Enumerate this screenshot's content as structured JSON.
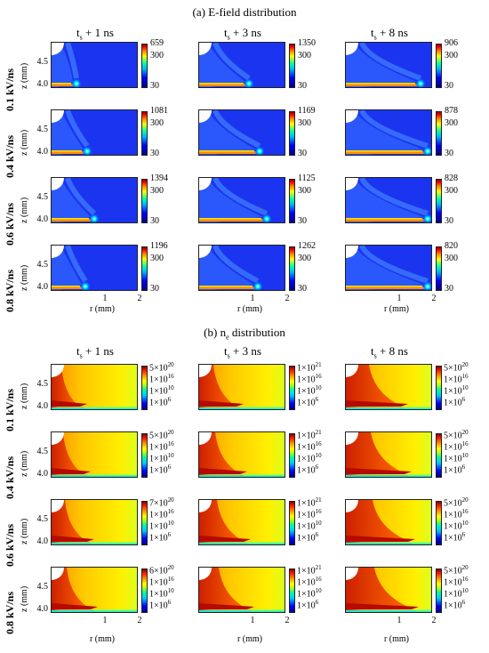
{
  "section_a": {
    "label": "(a) E-field distribution"
  },
  "section_b": {
    "label": "(b) n",
    "label_sub": "e",
    "label_tail": " distribution"
  },
  "columns": [
    {
      "t": "t",
      "sub": "s",
      "rest": " + 1 ns"
    },
    {
      "t": "t",
      "sub": "s",
      "rest": " + 3 ns"
    },
    {
      "t": "t",
      "sub": "s",
      "rest": " + 8 ns"
    }
  ],
  "rows": [
    "0.1 kV/ns",
    "0.4 kV/ns",
    "0.6 kV/ns",
    "0.8 kV/ns"
  ],
  "axes": {
    "zlabel": "z (mm)",
    "xlabel": "r (mm)",
    "yticks": [
      "4.5",
      "4.0"
    ],
    "xticks": [
      "1",
      "2"
    ]
  },
  "efield_colorbar": {
    "mid": "300",
    "low": "30"
  },
  "efield_max": [
    [
      "659",
      "1350",
      "906"
    ],
    [
      "1081",
      "1169",
      "878"
    ],
    [
      "1394",
      "1125",
      "828"
    ],
    [
      "1196",
      "1262",
      "820"
    ]
  ],
  "ne_colorbar": {
    "ticks": [
      "1×10",
      "1×10",
      "1×10"
    ],
    "tick_exps": [
      "16",
      "10",
      "6"
    ]
  },
  "ne_max": [
    [
      {
        "m": "5×10",
        "e": "20"
      },
      {
        "m": "1×10",
        "e": "21"
      },
      {
        "m": "5×10",
        "e": "20"
      }
    ],
    [
      {
        "m": "5×10",
        "e": "20"
      },
      {
        "m": "1×10",
        "e": "21"
      },
      {
        "m": "5×10",
        "e": "20"
      }
    ],
    [
      {
        "m": "7×10",
        "e": "20"
      },
      {
        "m": "1×10",
        "e": "21"
      },
      {
        "m": "5×10",
        "e": "20"
      }
    ],
    [
      {
        "m": "6×10",
        "e": "20"
      },
      {
        "m": "1×10",
        "e": "21"
      },
      {
        "m": "5×10",
        "e": "20"
      }
    ]
  ],
  "colors": {
    "field_bg": "#1e3cff",
    "ne_bg_low": "#ffd21e",
    "ne_dense": "#d71e0a",
    "cyan_layer": "#18e6d0"
  }
}
